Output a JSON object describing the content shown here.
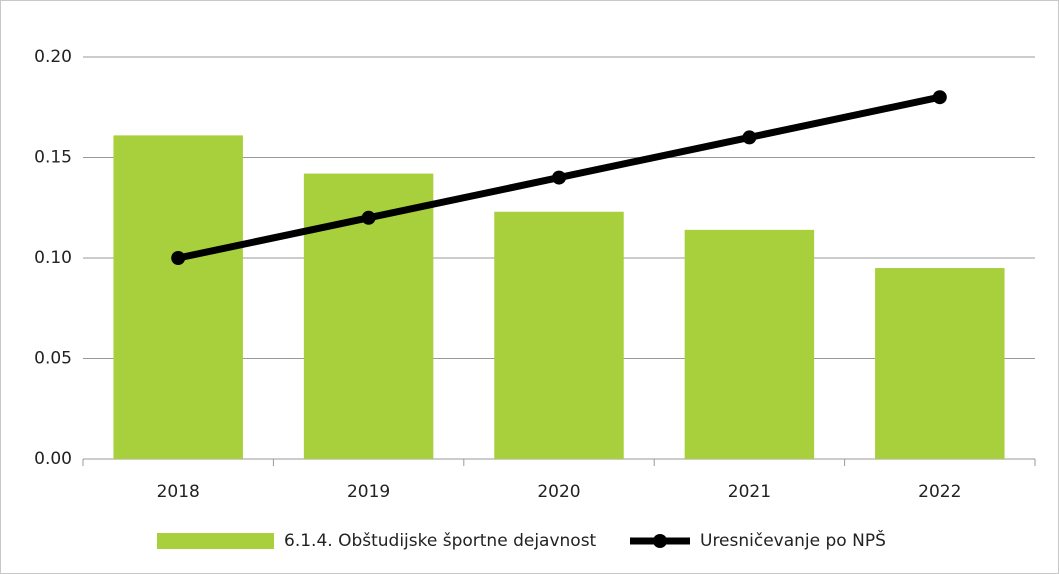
{
  "chart_data": {
    "type": "bar",
    "categories": [
      "2018",
      "2019",
      "2020",
      "2021",
      "2022"
    ],
    "series": [
      {
        "name": "6.1.4. Obštudijske športne dejavnost",
        "type": "bar",
        "color": "#a8cf3c",
        "values": [
          0.161,
          0.142,
          0.123,
          0.114,
          0.095
        ]
      },
      {
        "name": "Uresničevanje po NPŠ",
        "type": "line",
        "color": "#000000",
        "values": [
          0.1,
          0.12,
          0.14,
          0.16,
          0.18
        ]
      }
    ],
    "ylim": [
      0,
      0.2
    ],
    "yticks": [
      {
        "value": 0,
        "label": "0.00"
      },
      {
        "value": 0.05,
        "label": "0.05"
      },
      {
        "value": 0.1,
        "label": "0.10"
      },
      {
        "value": 0.15,
        "label": "0.15"
      },
      {
        "value": 0.2,
        "label": "0.20"
      }
    ],
    "grid": true,
    "legend": "bottom"
  }
}
